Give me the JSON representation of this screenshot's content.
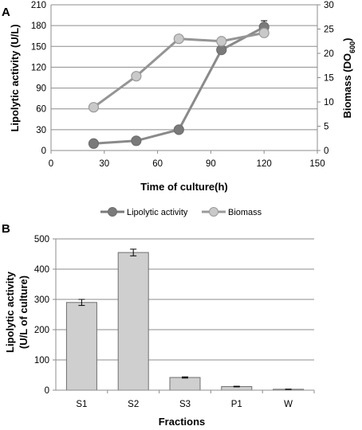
{
  "chart_data": [
    {
      "panel": "A",
      "type": "line",
      "xlabel": "Time of culture(h)",
      "ylabel_left": "Lipolytic activity  (U/L)",
      "ylabel_right_main": "Biomass (DO",
      "ylabel_right_sub": "600",
      "ylabel_right_end": ")",
      "xlim": [
        0,
        150
      ],
      "ylim_left": [
        0,
        210
      ],
      "ylim_right": [
        0,
        30
      ],
      "x_ticks": [
        0,
        30,
        60,
        90,
        120,
        150
      ],
      "y_left_ticks": [
        0,
        30,
        60,
        90,
        120,
        150,
        180,
        210
      ],
      "y_right_ticks": [
        0,
        5,
        10,
        15,
        20,
        25,
        30
      ],
      "grid": true,
      "legend_position": "bottom",
      "series": [
        {
          "name": "Lipolytic activity",
          "axis": "left",
          "color": "#7a7a7a",
          "x": [
            24,
            48,
            72,
            96,
            120
          ],
          "y": [
            10,
            14,
            30,
            145,
            178
          ],
          "err": [
            0,
            0,
            0,
            0,
            9
          ]
        },
        {
          "name": "Biomass",
          "axis": "right",
          "color": "#c3c3c3",
          "x": [
            24,
            48,
            72,
            96,
            120
          ],
          "y": [
            8.9,
            15.3,
            23.0,
            22.5,
            24.2
          ],
          "err": [
            0,
            0,
            0,
            0,
            0
          ]
        }
      ]
    },
    {
      "panel": "B",
      "type": "bar",
      "xlabel": "Fractions",
      "ylabel_line1": "Lipolytic activity",
      "ylabel_line2": "(U/L of culture)",
      "categories": [
        "S1",
        "S2",
        "S3",
        "P1",
        "W"
      ],
      "values": [
        290,
        455,
        42,
        12,
        3
      ],
      "errors": [
        10,
        11,
        2,
        1,
        0.5
      ],
      "ylim": [
        0,
        500
      ],
      "y_ticks": [
        0,
        100,
        200,
        300,
        400,
        500
      ],
      "grid": true,
      "bar_color": "#cfcfcf"
    }
  ]
}
